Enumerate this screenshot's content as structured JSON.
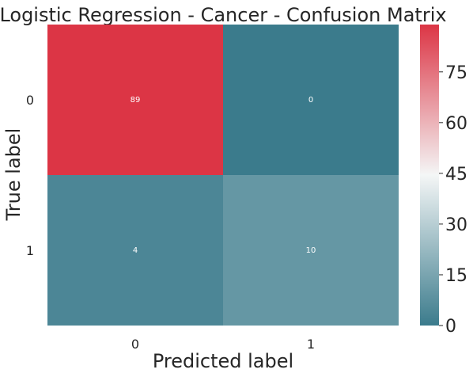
{
  "chart_data": {
    "type": "heatmap",
    "title": "Logistic Regression - Cancer - Confusion Matrix",
    "xlabel": "Predicted label",
    "ylabel": "True label",
    "x_categories": [
      "0",
      "1"
    ],
    "y_categories": [
      "0",
      "1"
    ],
    "matrix": [
      [
        89,
        0
      ],
      [
        4,
        10
      ]
    ],
    "colorbar": {
      "range": [
        0,
        89
      ],
      "ticks": [
        0,
        15,
        30,
        45,
        60,
        75
      ],
      "colors": [
        "#3b7b8c",
        "#f4f6f6",
        "#dc3545"
      ]
    },
    "annotation_color": "#ffffff",
    "grid": false
  }
}
